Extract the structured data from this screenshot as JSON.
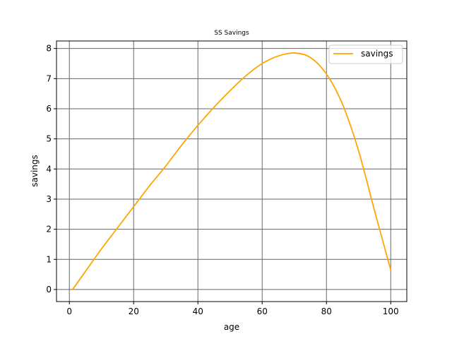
{
  "chart_data": {
    "type": "line",
    "title": "SS Savings",
    "xlabel": "age",
    "ylabel": "savings",
    "xlim": [
      -4,
      105
    ],
    "ylim": [
      -0.4,
      8.25
    ],
    "xticks": [
      0,
      20,
      40,
      60,
      80,
      100
    ],
    "yticks": [
      0,
      1,
      2,
      3,
      4,
      5,
      6,
      7,
      8
    ],
    "grid": true,
    "legend_position": "upper-right",
    "series": [
      {
        "name": "savings",
        "color": "#ffa500",
        "x": [
          1,
          5,
          10,
          15,
          20,
          25,
          30,
          35,
          40,
          45,
          50,
          55,
          60,
          65,
          70,
          75,
          80,
          85,
          90,
          95,
          100
        ],
        "y": [
          0.0,
          0.6,
          1.35,
          2.05,
          2.75,
          3.45,
          4.1,
          4.8,
          5.45,
          6.05,
          6.6,
          7.1,
          7.5,
          7.75,
          7.85,
          7.7,
          7.15,
          6.15,
          4.6,
          2.6,
          0.65
        ]
      }
    ]
  },
  "colors": {
    "grid": "#666666",
    "axes": "#000000"
  }
}
